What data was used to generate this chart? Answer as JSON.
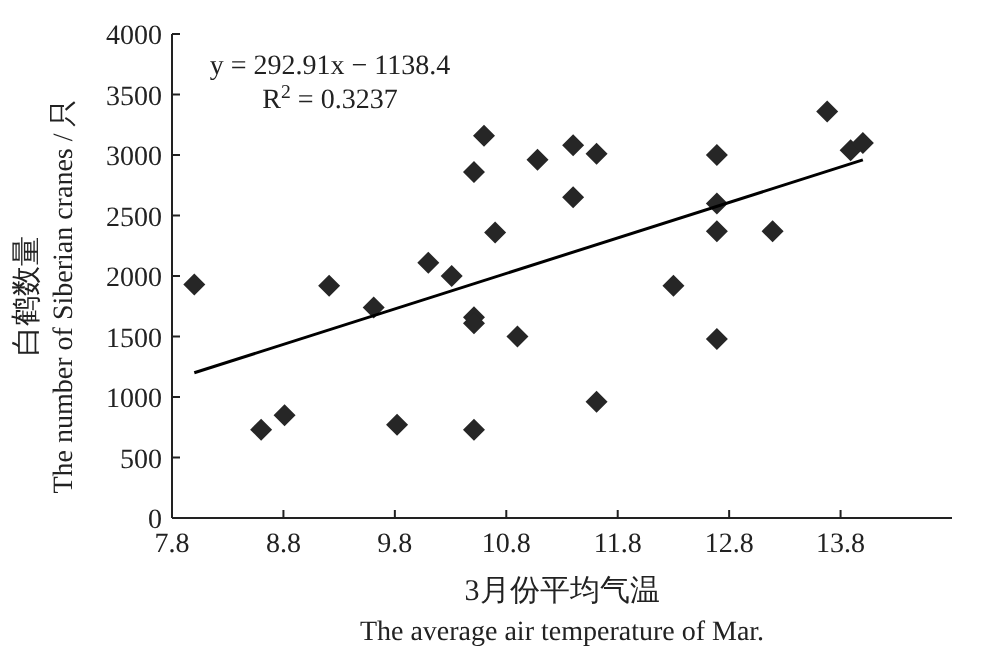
{
  "chart_data": {
    "type": "scatter",
    "xlabel": "3月份平均气温\nThe average air temperature of Mar.",
    "ylabel": "白鹤数量\nThe number of Siberian cranes / 只",
    "annotations": [
      "y = 292.91x − 1138.4",
      "R$^{2}$ = 0.3237"
    ],
    "series": [
      {
        "type": "scatter",
        "color": "#262626",
        "marker": "diamond",
        "x": [
          8.0,
          8.6,
          8.81,
          9.21,
          9.61,
          9.82,
          10.1,
          10.31,
          10.51,
          10.6,
          10.51,
          10.51,
          10.51,
          10.7,
          10.9,
          11.08,
          11.4,
          11.4,
          11.61,
          11.61,
          12.3,
          12.69,
          12.69,
          12.69,
          12.69,
          13.19,
          13.68,
          13.89,
          14.0
        ],
        "values": [
          1930,
          730,
          850,
          1920,
          1740,
          770,
          2110,
          2000,
          2860,
          3160,
          1660,
          1610,
          730,
          2360,
          1500,
          2960,
          3080,
          2650,
          3010,
          960,
          1920,
          3000,
          2600,
          2370,
          1480,
          2370,
          3360,
          3040,
          3100
        ]
      },
      {
        "type": "line",
        "color": "#000000",
        "marker": "none",
        "x": [
          8.0,
          14.0
        ],
        "values": [
          1200,
          2960
        ]
      }
    ],
    "xlim": [
      7.8,
      14.8
    ],
    "ylim": [
      0,
      4000
    ],
    "xticks": [
      7.8,
      8.8,
      9.8,
      10.8,
      11.8,
      12.8,
      13.8
    ],
    "yticks": [
      0,
      500,
      1000,
      1500,
      2000,
      2500,
      3000,
      3500,
      4000
    ],
    "grid": false
  }
}
